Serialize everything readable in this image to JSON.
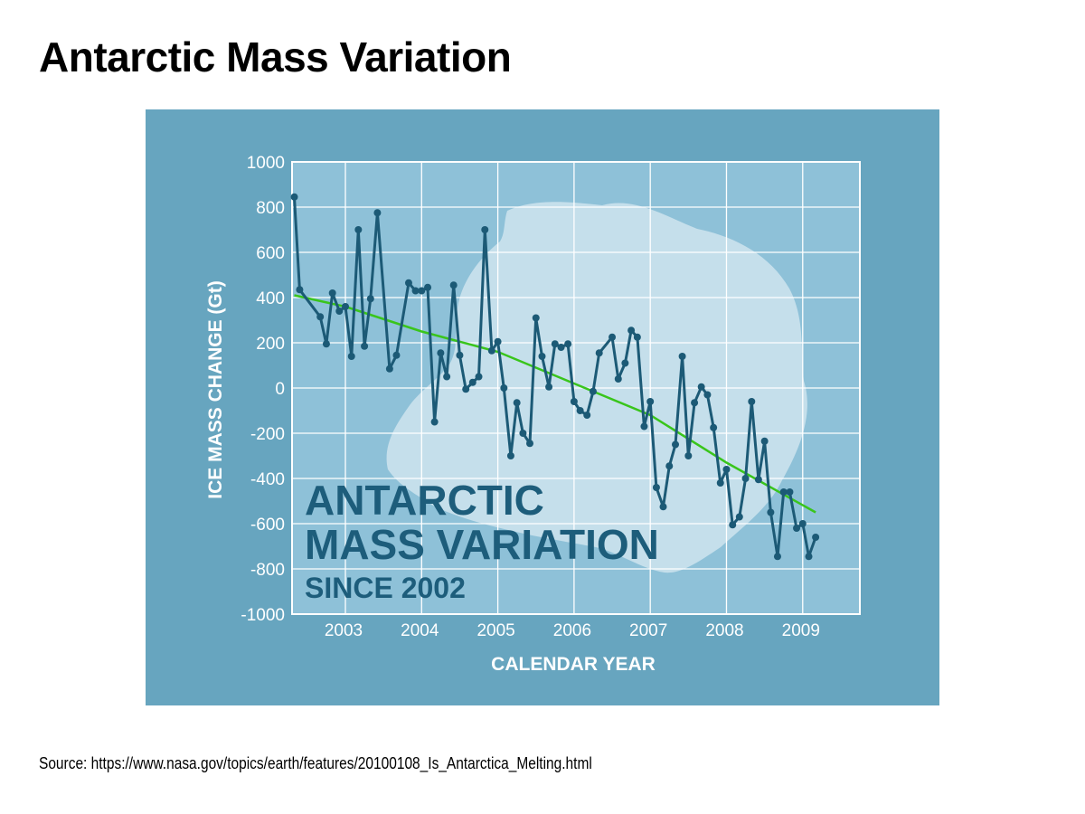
{
  "page": {
    "title": "Antarctic Mass Variation",
    "source": "Source: https://www.nasa.gov/topics/earth/features/20100108_Is_Antarctica_Melting.html"
  },
  "colors": {
    "frame_background": "#67a5bf",
    "plot_background": "#8ec1d8",
    "ice_shape": "#cfe4ee",
    "grid": "#ffffff",
    "series": "#1c5a76",
    "trend": "#39c51b",
    "overlay_text": "#1d5d7b"
  },
  "chart_data": {
    "type": "line",
    "overlay_title_lines": [
      "ANTARCTIC",
      "MASS VARIATION",
      "SINCE 2002"
    ],
    "xlabel": "CALENDAR YEAR",
    "ylabel": "ICE MASS CHANGE (Gt)",
    "xlim": [
      2002.3,
      2009.75
    ],
    "ylim": [
      -1000,
      1000
    ],
    "x_ticks": [
      2003,
      2004,
      2005,
      2006,
      2007,
      2008,
      2009
    ],
    "x_tick_labels": [
      "2003",
      "2004",
      "2005",
      "2006",
      "2007",
      "2008",
      "2009"
    ],
    "y_ticks": [
      1000,
      800,
      600,
      400,
      200,
      0,
      -200,
      -400,
      -600,
      -800,
      -1000
    ],
    "y_tick_labels": [
      "1000",
      "800",
      "600",
      "400",
      "200",
      "0",
      "-200",
      "-400",
      "-600",
      "-800",
      "-1000"
    ],
    "grid": true,
    "series": [
      {
        "points": [
          [
            2002.33,
            845
          ],
          [
            2002.4,
            435
          ],
          [
            2002.67,
            315
          ],
          [
            2002.75,
            195
          ],
          [
            2002.83,
            420
          ],
          [
            2002.92,
            340
          ],
          [
            2003.0,
            360
          ],
          [
            2003.08,
            140
          ],
          [
            2003.17,
            700
          ],
          [
            2003.25,
            185
          ],
          [
            2003.33,
            395
          ],
          [
            2003.42,
            775
          ],
          [
            2003.58,
            85
          ],
          [
            2003.67,
            145
          ],
          [
            2003.83,
            465
          ],
          [
            2003.92,
            430
          ],
          [
            2004.0,
            430
          ],
          [
            2004.08,
            445
          ],
          [
            2004.17,
            -150
          ],
          [
            2004.25,
            155
          ],
          [
            2004.33,
            50
          ],
          [
            2004.42,
            455
          ],
          [
            2004.5,
            145
          ],
          [
            2004.58,
            -5
          ],
          [
            2004.67,
            25
          ],
          [
            2004.75,
            50
          ],
          [
            2004.83,
            700
          ],
          [
            2004.92,
            165
          ],
          [
            2005.0,
            205
          ],
          [
            2005.08,
            0
          ],
          [
            2005.17,
            -300
          ],
          [
            2005.25,
            -65
          ],
          [
            2005.33,
            -200
          ],
          [
            2005.42,
            -245
          ],
          [
            2005.5,
            310
          ],
          [
            2005.58,
            140
          ],
          [
            2005.67,
            5
          ],
          [
            2005.75,
            195
          ],
          [
            2005.83,
            180
          ],
          [
            2005.92,
            195
          ],
          [
            2006.0,
            -60
          ],
          [
            2006.08,
            -100
          ],
          [
            2006.17,
            -120
          ],
          [
            2006.25,
            -15
          ],
          [
            2006.33,
            155
          ],
          [
            2006.5,
            225
          ],
          [
            2006.58,
            40
          ],
          [
            2006.67,
            110
          ],
          [
            2006.75,
            255
          ],
          [
            2006.83,
            225
          ],
          [
            2006.92,
            -170
          ],
          [
            2007.0,
            -60
          ],
          [
            2007.08,
            -440
          ],
          [
            2007.17,
            -525
          ],
          [
            2007.25,
            -345
          ],
          [
            2007.33,
            -250
          ],
          [
            2007.42,
            140
          ],
          [
            2007.5,
            -300
          ],
          [
            2007.58,
            -65
          ],
          [
            2007.67,
            5
          ],
          [
            2007.75,
            -30
          ],
          [
            2007.83,
            -175
          ],
          [
            2007.92,
            -420
          ],
          [
            2008.0,
            -360
          ],
          [
            2008.08,
            -605
          ],
          [
            2008.17,
            -570
          ],
          [
            2008.25,
            -400
          ],
          [
            2008.33,
            -60
          ],
          [
            2008.42,
            -405
          ],
          [
            2008.5,
            -235
          ],
          [
            2008.58,
            -550
          ],
          [
            2008.67,
            -745
          ],
          [
            2008.75,
            -460
          ],
          [
            2008.83,
            -460
          ],
          [
            2008.92,
            -620
          ],
          [
            2009.0,
            -600
          ],
          [
            2009.08,
            -745
          ],
          [
            2009.17,
            -660
          ]
        ]
      }
    ],
    "trend_line": {
      "points": [
        [
          2002.33,
          410
        ],
        [
          2003.0,
          360
        ],
        [
          2004.0,
          250
        ],
        [
          2005.0,
          160
        ],
        [
          2006.0,
          20
        ],
        [
          2007.0,
          -120
        ],
        [
          2008.0,
          -330
        ],
        [
          2009.17,
          -550
        ]
      ]
    }
  }
}
